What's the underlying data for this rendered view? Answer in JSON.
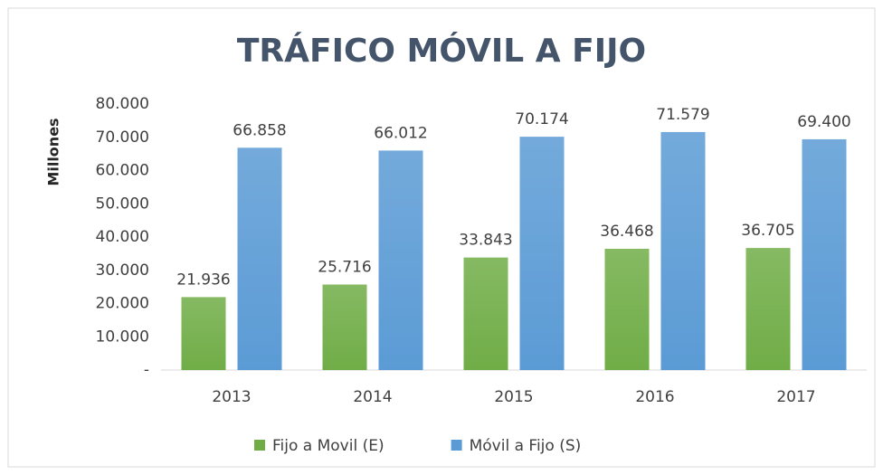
{
  "chart_data": {
    "type": "bar",
    "title": "TRÁFICO MÓVIL A FIJO",
    "ylabel": "Millones",
    "categories": [
      "2013",
      "2014",
      "2015",
      "2016",
      "2017"
    ],
    "series": [
      {
        "name": "Fijo a Movil (E)",
        "color": "#70ad47",
        "values": [
          21936,
          25716,
          33843,
          36468,
          36705
        ],
        "value_labels": [
          "21.936",
          "25.716",
          "33.843",
          "36.468",
          "36.705"
        ]
      },
      {
        "name": "Móvil a Fijo (S)",
        "color": "#5b9bd5",
        "values": [
          66858,
          66012,
          70174,
          71579,
          69400
        ],
        "value_labels": [
          "66.858",
          "66.012",
          "70.174",
          "71.579",
          "69.400"
        ]
      }
    ],
    "ylim": [
      0,
      80000
    ],
    "yticks": [
      {
        "value": 0,
        "label": "-"
      },
      {
        "value": 10000,
        "label": "10.000"
      },
      {
        "value": 20000,
        "label": "20.000"
      },
      {
        "value": 30000,
        "label": "30.000"
      },
      {
        "value": 40000,
        "label": "40.000"
      },
      {
        "value": 50000,
        "label": "50.000"
      },
      {
        "value": 60000,
        "label": "60.000"
      },
      {
        "value": 70000,
        "label": "70.000"
      },
      {
        "value": 80000,
        "label": "80.000"
      }
    ],
    "grid": false,
    "legend": "bottom"
  }
}
